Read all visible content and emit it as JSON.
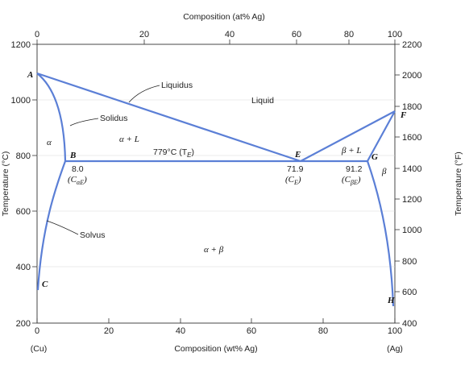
{
  "top_axis": {
    "title": "Composition (at% Ag)",
    "ticks": [
      "0",
      "20",
      "40",
      "60",
      "80",
      "100"
    ]
  },
  "bottom_axis": {
    "title": "Composition (wt% Ag)",
    "ticks": [
      "0",
      "20",
      "40",
      "60",
      "80",
      "100"
    ],
    "left_end": "(Cu)",
    "right_end": "(Ag)"
  },
  "left_axis": {
    "title": "Temperature (°C)",
    "ticks": [
      "200",
      "400",
      "600",
      "800",
      "1000",
      "1200"
    ]
  },
  "right_axis": {
    "title": "Temperature (°F)",
    "ticks": [
      "400",
      "600",
      "800",
      "1000",
      "1200",
      "1400",
      "1600",
      "1800",
      "2000",
      "2200"
    ]
  },
  "labels": {
    "point_a": "A",
    "point_b": "B",
    "point_c": "C",
    "point_e": "E",
    "point_f": "F",
    "point_g": "G",
    "point_h": "H",
    "liquidus": "Liquidus",
    "solidus": "Solidus",
    "solvus": "Solvus",
    "liquid": "Liquid",
    "alpha": "α",
    "alpha_l": "α + L",
    "beta_l": "β + L",
    "beta": "β",
    "alpha_beta": "α + β",
    "eutectic_temp": "779°C (T",
    "eutectic_temp_sub": "E",
    "eutectic_temp_close": ")",
    "c_ae_value": "8.0",
    "c_ae_label": "(C",
    "c_ae_sub": "αE",
    "c_ae_close": ")",
    "c_e_value": "71.9",
    "c_e_label": "(C",
    "c_e_sub": "E",
    "c_e_close": ")",
    "c_be_value": "91.2",
    "c_be_label": "(C",
    "c_be_sub": "βE",
    "c_be_close": ")"
  },
  "colors": {
    "phase_line": "#5b7fd6",
    "frame": "#333333",
    "grid": "#d8d8d8"
  }
}
